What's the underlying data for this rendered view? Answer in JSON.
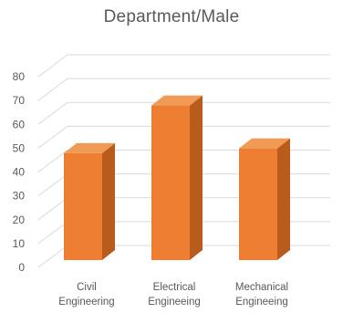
{
  "chart_data": {
    "type": "bar",
    "title": "Department/Male",
    "categories": [
      [
        "Civil",
        "Engineering"
      ],
      [
        "Electrical",
        "Engineeing"
      ],
      [
        "Mechanical",
        "Engineeing"
      ]
    ],
    "values": [
      50,
      70,
      52
    ],
    "ylim": [
      0,
      80
    ],
    "yticks": [
      0,
      10,
      20,
      30,
      40,
      50,
      60,
      70,
      80
    ],
    "grid": true,
    "style": "3d-column",
    "colors": {
      "front": "#ed7d31",
      "side": "#b95b1d",
      "top": "#f19a55",
      "grid": "#d9d9d9",
      "text": "#595959"
    }
  }
}
